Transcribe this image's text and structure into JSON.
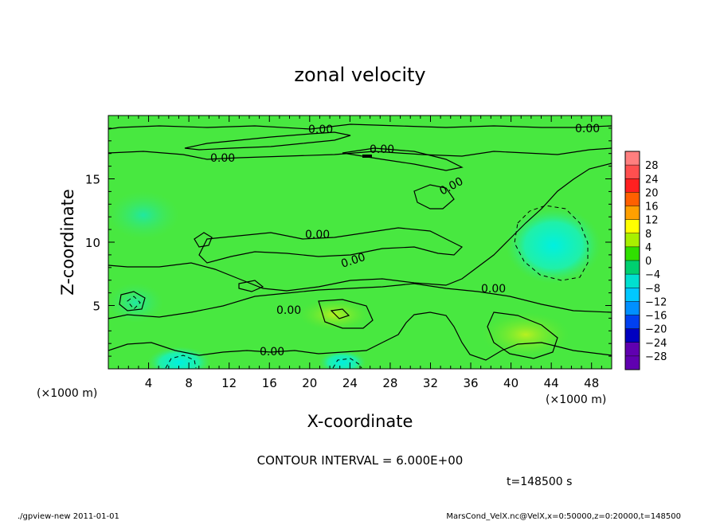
{
  "chart_data": {
    "type": "heatmap",
    "title": "zonal velocity",
    "xlabel": "X-coordinate",
    "ylabel": "Z-coordinate",
    "x_unit_label": "(×1000 m)",
    "xlim": [
      0,
      50
    ],
    "ylim": [
      0,
      20
    ],
    "x_ticks": [
      "4",
      "8",
      "12",
      "16",
      "20",
      "24",
      "28",
      "32",
      "36",
      "40",
      "44",
      "48"
    ],
    "y_ticks": [
      "5",
      "10",
      "15"
    ],
    "contour_interval_text": "CONTOUR INTERVAL = 6.000E+00",
    "contour_labels": [
      "0.00",
      "0.00",
      "0.00",
      "0.00",
      "0.00",
      "0.00",
      "0.00",
      "0.00",
      "0.00",
      "0.00"
    ],
    "time_text": "t=148500 s",
    "colorbar": {
      "labels": [
        "28",
        "24",
        "20",
        "16",
        "12",
        "8",
        "4",
        "0",
        "−4",
        "−8",
        "−12",
        "−16",
        "−20",
        "−24",
        "−28"
      ],
      "colors": [
        "#ff7f7f",
        "#ff4f4f",
        "#ff2020",
        "#ff6000",
        "#ffa000",
        "#ffff00",
        "#a8f000",
        "#30e000",
        "#00d070",
        "#00e0d0",
        "#00c8ff",
        "#0090ff",
        "#0040f0",
        "#0000c0",
        "#6000b0"
      ]
    },
    "field_summary": {
      "min_region": {
        "x": 43.5,
        "z": 10.0,
        "value": -9
      },
      "max_regions": [
        {
          "x": 23,
          "z": 4.5,
          "value": 5
        },
        {
          "x": 42,
          "z": 2.5,
          "value": 5
        }
      ]
    }
  },
  "footer": {
    "left": "./gpview-new  2011-01-01",
    "right": "MarsCond_VelX.nc@VelX,x=0:50000,z=0:20000,t=148500"
  }
}
